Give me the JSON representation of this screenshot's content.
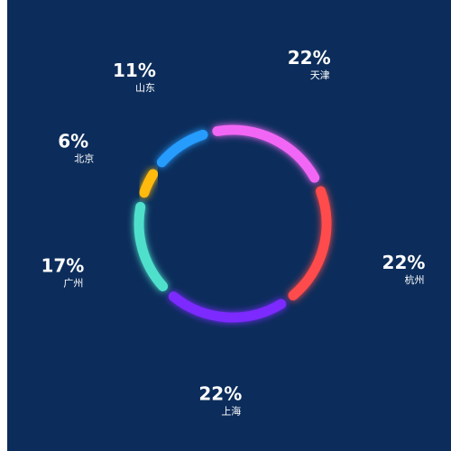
{
  "chart_data": {
    "type": "pie",
    "style": "donut-segmented",
    "background": "#0c2d5b",
    "series": [
      {
        "name": "天津",
        "value": 22,
        "label": "22%",
        "color": "#f266f5"
      },
      {
        "name": "杭州",
        "value": 22,
        "label": "22%",
        "color": "#ff4b4b"
      },
      {
        "name": "上海",
        "value": 22,
        "label": "22%",
        "color": "#7b2cff"
      },
      {
        "name": "广州",
        "value": 17,
        "label": "17%",
        "color": "#4fe0cc"
      },
      {
        "name": "北京",
        "value": 6,
        "label": "6%",
        "color": "#ffba0a"
      },
      {
        "name": "山东",
        "value": 11,
        "label": "11%",
        "color": "#279cff"
      }
    ]
  }
}
